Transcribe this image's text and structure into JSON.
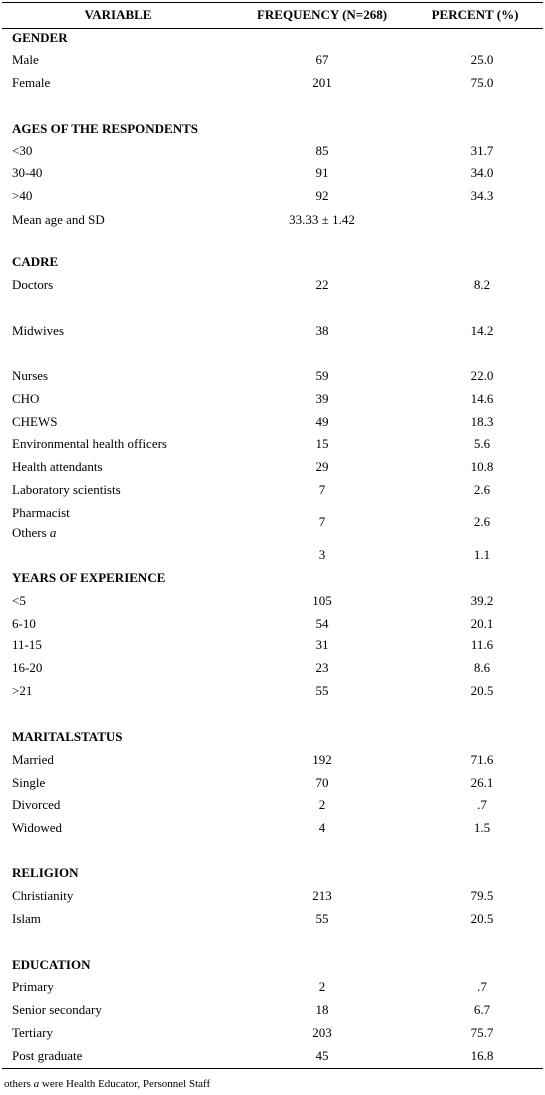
{
  "table": {
    "header": [
      "VARIABLE",
      "FREQUENCY (N=268)",
      "PERCENT (%)"
    ],
    "rows": [
      {
        "label": "GENDER"
      },
      {
        "label": "Male",
        "frequency": "67",
        "percent": "25.0"
      },
      {
        "label": "Female",
        "frequency": "201",
        "percent": "75.0"
      },
      {
        "label": "AGES OF THE RESPONDENTS"
      },
      {
        "label": "<30",
        "frequency": "85",
        "percent": "31.7"
      },
      {
        "label": "30-40",
        "frequency": "91",
        "percent": "34.0"
      },
      {
        "label": ">40",
        "frequency": "92",
        "percent": "34.3"
      },
      {
        "label": "Mean age and SD",
        "frequency": "33.33 ± 1.42"
      },
      {
        "label": "CADRE"
      },
      {
        "label": "Doctors",
        "frequency": "22",
        "percent": "8.2"
      },
      {
        "label": "Midwives",
        "frequency": "38",
        "percent": "14.2"
      },
      {
        "label": "Nurses",
        "frequency": "59",
        "percent": "22.0"
      },
      {
        "label": "CHO",
        "frequency": "39",
        "percent": "14.6"
      },
      {
        "label": "CHEWS",
        "frequency": "49",
        "percent": "18.3"
      },
      {
        "label": "Environmental health officers",
        "frequency": "15",
        "percent": "5.6"
      },
      {
        "label": "Health attendants",
        "frequency": "29",
        "percent": "10.8"
      },
      {
        "label": "Laboratory scientists",
        "frequency": "7",
        "percent": "2.6"
      },
      {
        "label": "Pharmacist",
        "frequency": "7",
        "percent": "2.6"
      },
      {
        "label": "Others",
        "mark": "a"
      },
      {
        "frequency": "3",
        "percent": "1.1"
      },
      {
        "label": "YEARS OF EXPERIENCE"
      },
      {
        "label": "<5",
        "frequency": "105",
        "percent": "39.2"
      },
      {
        "label": "6-10",
        "frequency": "54",
        "percent": "20.1"
      },
      {
        "label": "11-15",
        "frequency": "31",
        "percent": "11.6"
      },
      {
        "label": "16-20",
        "frequency": "23",
        "percent": "8.6"
      },
      {
        "label": ">21",
        "frequency": "55",
        "percent": "20.5"
      },
      {
        "label": "MARITALSTATUS"
      },
      {
        "label": "Married",
        "frequency": "192",
        "percent": "71.6"
      },
      {
        "label": "Single",
        "frequency": "70",
        "percent": "26.1"
      },
      {
        "label": "Divorced",
        "frequency": "2",
        "percent": ".7"
      },
      {
        "label": "Widowed",
        "frequency": "4",
        "percent": "1.5"
      },
      {
        "label": "RELIGION"
      },
      {
        "label": "Christianity",
        "frequency": "213",
        "percent": "79.5"
      },
      {
        "label": "Islam",
        "frequency": "55",
        "percent": "20.5"
      },
      {
        "label": "EDUCATION"
      },
      {
        "label": "Primary",
        "frequency": "2",
        "percent": ".7"
      },
      {
        "label": "Senior secondary",
        "frequency": "18",
        "percent": "6.7"
      },
      {
        "label": "Tertiary",
        "frequency": "203",
        "percent": "75.7"
      },
      {
        "label": "Post graduate",
        "frequency": "45",
        "percent": "16.8"
      }
    ]
  },
  "footnote": {
    "before": "others",
    "mark": "a",
    "after": "were Health Educator, Personnel Staff"
  }
}
